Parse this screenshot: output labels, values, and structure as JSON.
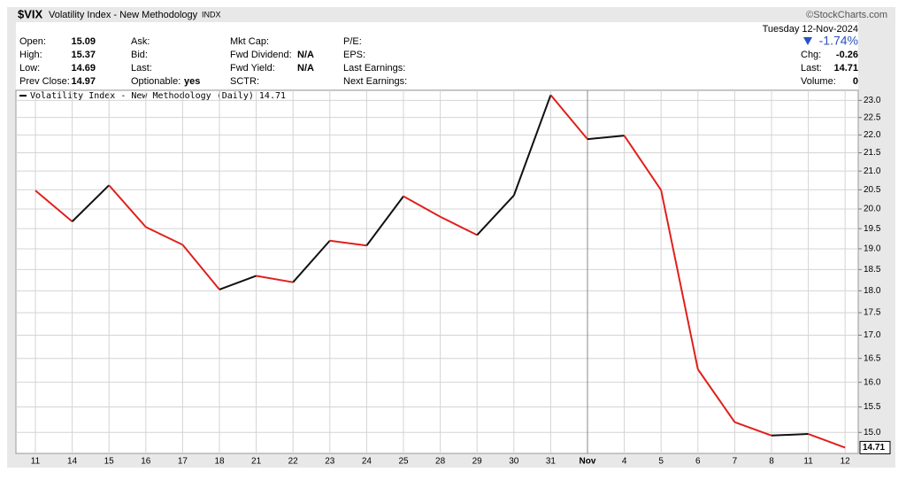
{
  "header": {
    "symbol": "$VIX",
    "name": "Volatility Index - New Methodology",
    "exchange": "INDX",
    "source": "©StockCharts.com"
  },
  "info": {
    "columns": [
      [
        {
          "label": "Open:",
          "value": "15.09"
        },
        {
          "label": "High:",
          "value": "15.37"
        },
        {
          "label": "Low:",
          "value": "14.69"
        },
        {
          "label": "Prev Close:",
          "value": "14.97"
        }
      ],
      [
        {
          "label": "Ask:"
        },
        {
          "label": "Bid:"
        },
        {
          "label": "Last:"
        },
        {
          "label": "Optionable:",
          "value": "yes"
        }
      ],
      [
        {
          "label": "Mkt Cap:"
        },
        {
          "label": "Fwd Dividend:",
          "value": "N/A"
        },
        {
          "label": "Fwd Yield:",
          "value": "N/A"
        },
        {
          "label": "SCTR:"
        }
      ],
      [
        {
          "label": "P/E:"
        },
        {
          "label": "EPS:"
        },
        {
          "label": "Last Earnings:"
        },
        {
          "label": "Next Earnings:"
        }
      ]
    ],
    "date": "Tuesday  12-Nov-2024",
    "change_pct": "-1.74%",
    "right": [
      {
        "label": "Chg:",
        "value": "-0.26"
      },
      {
        "label": "Last:",
        "value": "14.71"
      },
      {
        "label": "Volume:",
        "value": "0"
      }
    ]
  },
  "chart_data": {
    "type": "line",
    "log_scale": true,
    "grid": true,
    "categories": [
      "11",
      "14",
      "15",
      "16",
      "17",
      "18",
      "21",
      "22",
      "23",
      "24",
      "25",
      "28",
      "29",
      "30",
      "31",
      "Nov",
      "4",
      "5",
      "6",
      "7",
      "8",
      "11",
      "12"
    ],
    "series": [
      {
        "name": "Volatility Index - New Methodology (Daily)",
        "up_color": "#111111",
        "down_color": "#e0201c",
        "values": [
          20.48,
          19.68,
          20.62,
          19.54,
          19.1,
          18.03,
          18.35,
          18.2,
          19.2,
          19.08,
          20.33,
          19.8,
          19.34,
          20.35,
          23.16,
          21.88,
          21.98,
          20.49,
          16.27,
          15.2,
          14.94,
          14.97,
          14.71
        ]
      }
    ],
    "ylim": [
      14.6,
      23.3
    ],
    "yticks": [
      {
        "value": 15,
        "label": "15.0"
      },
      {
        "value": 15.5,
        "label": "15.5"
      },
      {
        "value": 16,
        "label": "16.0"
      },
      {
        "value": 16.5,
        "label": "16.5"
      },
      {
        "value": 17,
        "label": "17.0"
      },
      {
        "value": 17.5,
        "label": "17.5"
      },
      {
        "value": 18,
        "label": "18.0"
      },
      {
        "value": 18.5,
        "label": "18.5"
      },
      {
        "value": 19,
        "label": "19.0"
      },
      {
        "value": 19.5,
        "label": "19.5"
      },
      {
        "value": 20,
        "label": "20.0"
      },
      {
        "value": 20.5,
        "label": "20.5"
      },
      {
        "value": 21,
        "label": "21.0"
      },
      {
        "value": 21.5,
        "label": "21.5"
      },
      {
        "value": 22,
        "label": "22.0"
      },
      {
        "value": 22.5,
        "label": "22.5"
      },
      {
        "value": 23,
        "label": "23.0"
      }
    ]
  }
}
